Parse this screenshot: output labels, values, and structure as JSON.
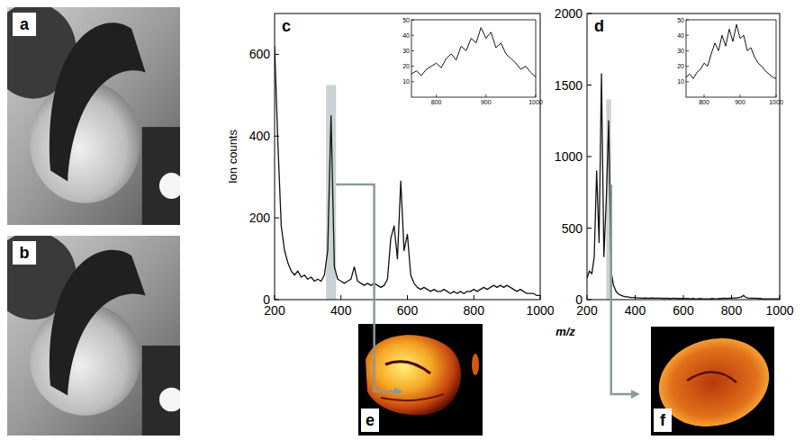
{
  "photos": [
    {
      "label": "a"
    },
    {
      "label": "b"
    }
  ],
  "images": [
    {
      "label": "e"
    },
    {
      "label": "f"
    }
  ],
  "chart_data": [
    {
      "type": "line",
      "title": "c",
      "y_label": "Ion counts",
      "x_label": "m/z",
      "color": "#111111",
      "x": [
        200,
        210,
        220,
        230,
        240,
        250,
        260,
        270,
        280,
        290,
        300,
        310,
        320,
        330,
        340,
        350,
        360,
        370,
        380,
        390,
        400,
        410,
        420,
        430,
        440,
        450,
        460,
        470,
        480,
        490,
        500,
        510,
        520,
        530,
        540,
        550,
        560,
        570,
        580,
        590,
        600,
        610,
        620,
        630,
        640,
        650,
        660,
        670,
        680,
        690,
        700,
        710,
        720,
        730,
        740,
        750,
        760,
        770,
        780,
        790,
        800,
        810,
        820,
        830,
        840,
        850,
        860,
        870,
        880,
        890,
        900,
        910,
        920,
        930,
        940,
        950,
        960,
        970,
        980,
        990,
        1000
      ],
      "values": [
        620,
        380,
        180,
        120,
        90,
        70,
        60,
        70,
        55,
        60,
        50,
        55,
        45,
        50,
        45,
        60,
        120,
        450,
        80,
        50,
        45,
        40,
        45,
        50,
        80,
        45,
        40,
        35,
        40,
        35,
        40,
        35,
        30,
        35,
        50,
        150,
        180,
        100,
        290,
        120,
        160,
        60,
        40,
        30,
        25,
        30,
        25,
        20,
        25,
        20,
        20,
        25,
        20,
        15,
        20,
        15,
        20,
        15,
        20,
        20,
        25,
        20,
        25,
        30,
        25,
        30,
        35,
        30,
        35,
        30,
        35,
        30,
        25,
        20,
        25,
        20,
        15,
        15,
        15,
        10,
        10
      ],
      "xlim": [
        200,
        1000
      ],
      "ylim": [
        0,
        700
      ],
      "xticks": [
        200,
        400,
        600,
        800,
        1000
      ],
      "yticks": [
        0,
        200,
        400,
        600
      ],
      "highlight": [
        355,
        385
      ],
      "inset": {
        "x": [
          750,
          760,
          770,
          780,
          790,
          800,
          810,
          820,
          830,
          840,
          850,
          860,
          870,
          880,
          890,
          900,
          910,
          920,
          930,
          940,
          950,
          960,
          970,
          980,
          990,
          1000
        ],
        "values": [
          15,
          17,
          14,
          18,
          20,
          22,
          19,
          25,
          28,
          24,
          33,
          30,
          38,
          35,
          45,
          38,
          42,
          32,
          35,
          28,
          25,
          22,
          18,
          20,
          16,
          13
        ],
        "xlim": [
          750,
          1000
        ],
        "ylim": [
          0,
          50
        ],
        "xticks": [
          800,
          900,
          1000
        ],
        "yticks": [
          10,
          20,
          30,
          40,
          50
        ]
      }
    },
    {
      "type": "line",
      "title": "d",
      "color": "#111111",
      "x": [
        200,
        210,
        220,
        230,
        240,
        250,
        260,
        270,
        280,
        290,
        300,
        310,
        320,
        330,
        340,
        350,
        360,
        370,
        380,
        390,
        400,
        410,
        420,
        430,
        440,
        450,
        460,
        470,
        480,
        490,
        500,
        510,
        520,
        530,
        540,
        550,
        560,
        570,
        580,
        590,
        600,
        610,
        620,
        630,
        640,
        650,
        660,
        670,
        680,
        690,
        700,
        710,
        720,
        730,
        740,
        750,
        760,
        770,
        780,
        790,
        800,
        810,
        820,
        830,
        840,
        850,
        860,
        870,
        880,
        890,
        900,
        910,
        920,
        930,
        940,
        950,
        960,
        970,
        980,
        990,
        1000
      ],
      "values": [
        150,
        200,
        180,
        300,
        900,
        400,
        1580,
        300,
        700,
        1250,
        200,
        100,
        60,
        40,
        30,
        25,
        20,
        20,
        15,
        15,
        15,
        12,
        12,
        10,
        12,
        10,
        10,
        12,
        10,
        10,
        10,
        10,
        8,
        10,
        8,
        8,
        10,
        8,
        8,
        8,
        8,
        8,
        8,
        6,
        8,
        6,
        6,
        8,
        6,
        6,
        6,
        6,
        8,
        6,
        6,
        8,
        8,
        10,
        8,
        10,
        10,
        12,
        12,
        15,
        18,
        30,
        15,
        12,
        10,
        10,
        10,
        8,
        8,
        6,
        6,
        6,
        5,
        5,
        5,
        5,
        5
      ],
      "xlim": [
        200,
        1000
      ],
      "ylim": [
        0,
        2000
      ],
      "xticks": [
        200,
        400,
        600,
        800,
        1000
      ],
      "yticks": [
        0,
        500,
        1000,
        1500,
        2000
      ],
      "highlight": [
        280,
        300
      ],
      "inset": {
        "x": [
          750,
          760,
          770,
          780,
          790,
          800,
          810,
          820,
          830,
          840,
          850,
          860,
          870,
          880,
          890,
          900,
          910,
          920,
          930,
          940,
          950,
          960,
          970,
          980,
          990,
          1000
        ],
        "values": [
          13,
          15,
          12,
          16,
          18,
          22,
          20,
          28,
          35,
          30,
          40,
          33,
          44,
          36,
          47,
          38,
          40,
          30,
          32,
          26,
          22,
          20,
          17,
          15,
          13,
          12
        ],
        "xlim": [
          750,
          1000
        ],
        "ylim": [
          0,
          50
        ],
        "xticks": [
          800,
          900,
          1000
        ],
        "yticks": [
          10,
          20,
          30,
          40,
          50
        ]
      }
    }
  ]
}
